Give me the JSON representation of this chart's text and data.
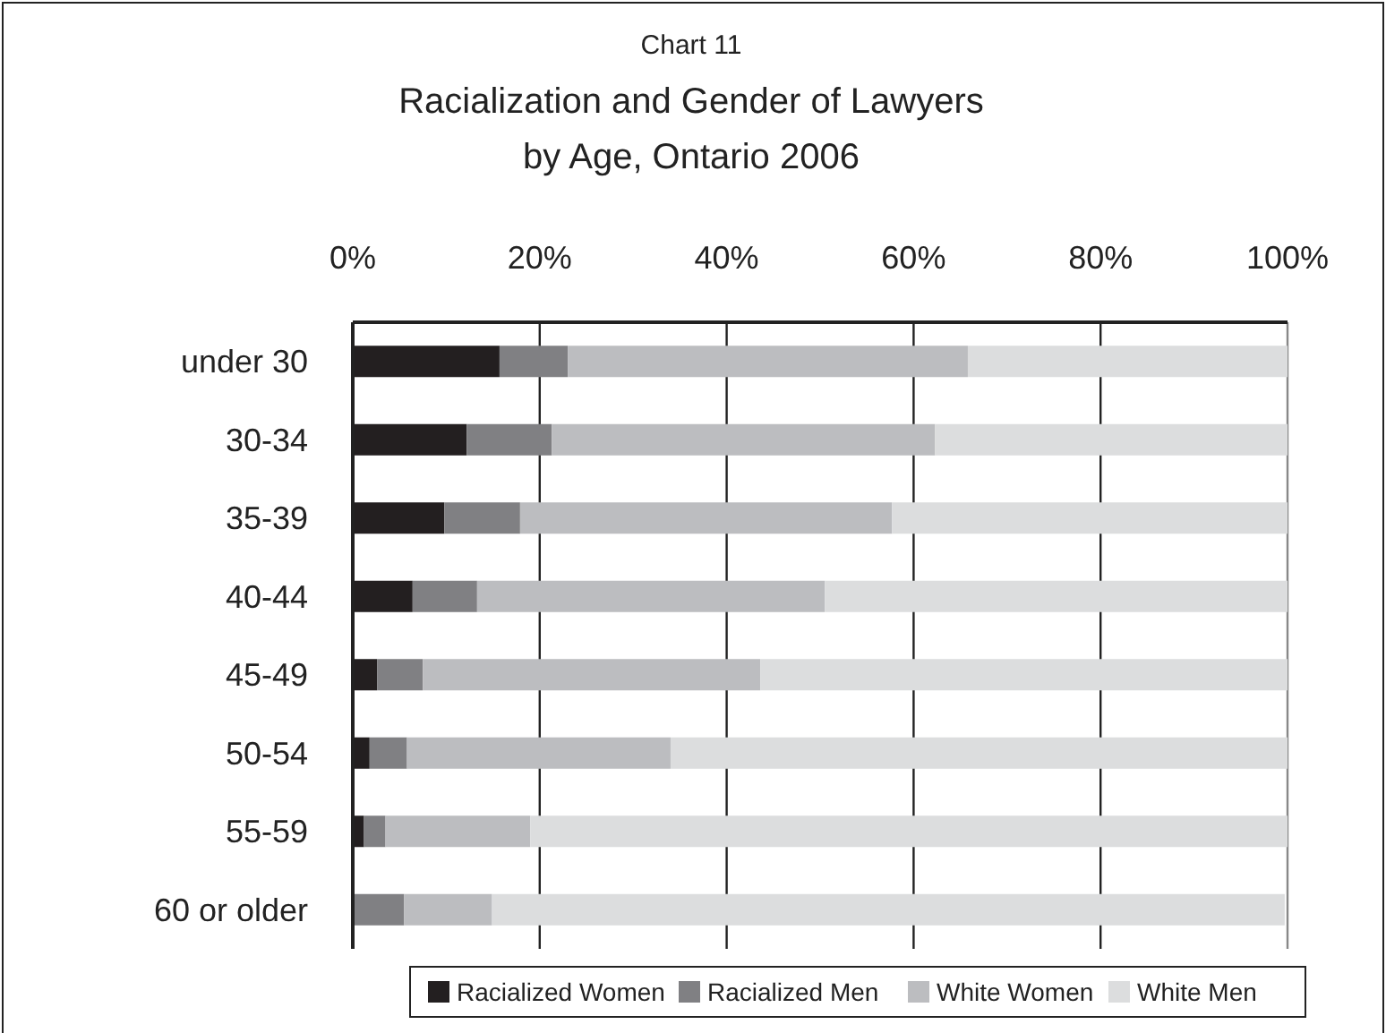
{
  "chart_data": {
    "type": "bar",
    "orientation": "horizontal",
    "stacked": true,
    "title": "Chart 11",
    "subtitle": "Racialization and Gender of Lawyers\nby Age, Ontario 2006",
    "categories": [
      "under 30",
      "30-34",
      "35-39",
      "40-44",
      "45-49",
      "50-54",
      "55-59",
      "60 or older"
    ],
    "series": [
      {
        "name": "Racialized Women",
        "color": "#231f20",
        "values": [
          15.7,
          12.2,
          9.8,
          6.4,
          2.6,
          1.8,
          1.2,
          null
        ]
      },
      {
        "name": "Racialized Men",
        "color": "#808083",
        "values": [
          7.3,
          9.1,
          8.1,
          6.9,
          4.9,
          4.0,
          2.3,
          5.5
        ]
      },
      {
        "name": "White Women",
        "color": "#bcbdc0",
        "values": [
          42.8,
          41.0,
          39.8,
          37.2,
          36.1,
          28.2,
          15.5,
          9.4
        ]
      },
      {
        "name": "White Men",
        "color": "#dcddde",
        "values": [
          34.2,
          37.7,
          42.3,
          49.5,
          56.4,
          66.0,
          81.0,
          84.8
        ]
      }
    ],
    "xlim": [
      0,
      100
    ],
    "xticks": [
      {
        "value": 0,
        "label": "0%"
      },
      {
        "value": 20,
        "label": "20%"
      },
      {
        "value": 40,
        "label": "40%"
      },
      {
        "value": 60,
        "label": "60%"
      },
      {
        "value": 80,
        "label": "80%"
      },
      {
        "value": 100,
        "label": "100%"
      }
    ],
    "grid": "x",
    "legend": "bottom right"
  }
}
